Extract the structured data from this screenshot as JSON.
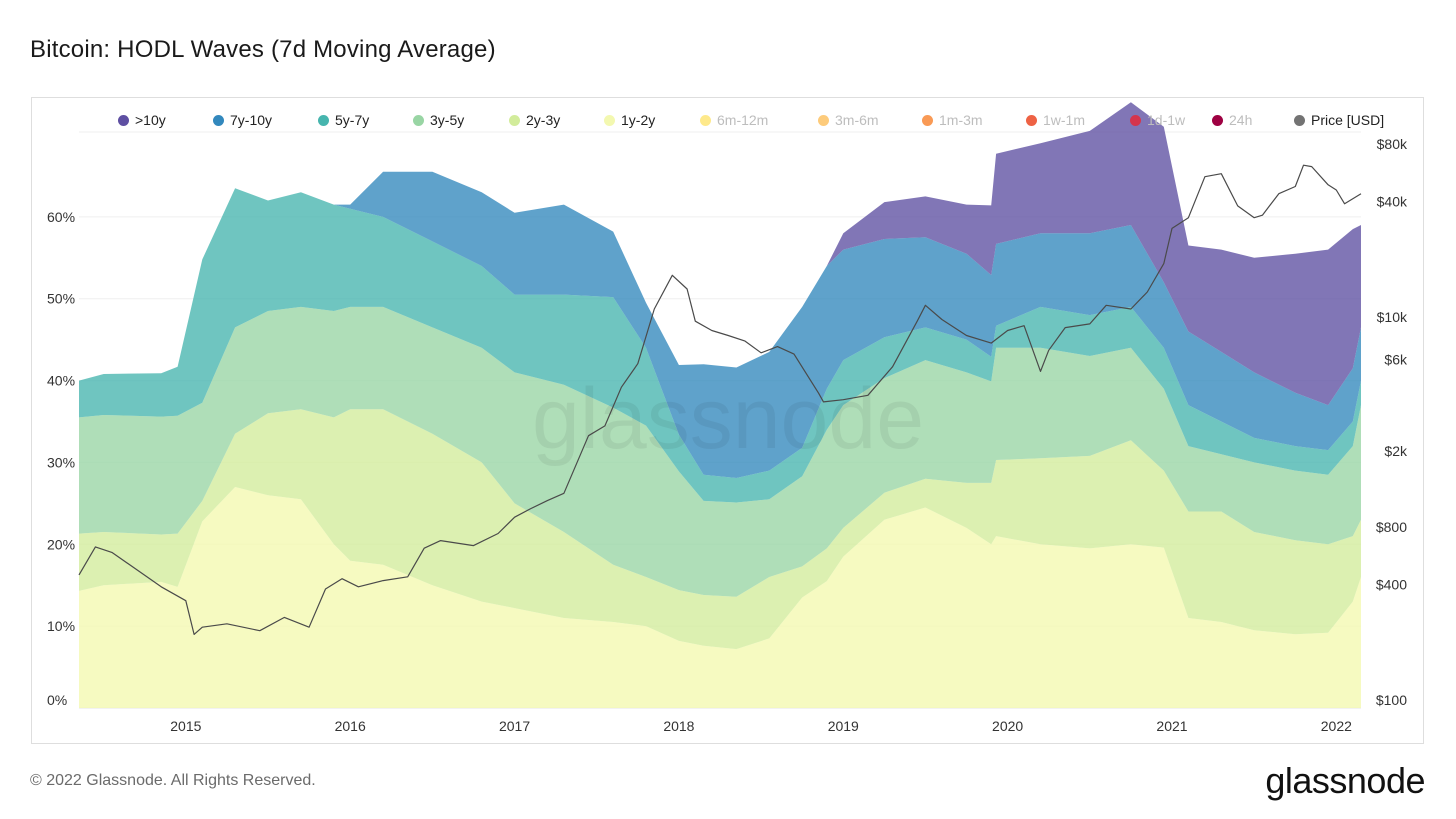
{
  "title": "Bitcoin: HODL Waves (7d Moving Average)",
  "footer": "© 2022 Glassnode. All Rights Reserved.",
  "brand": "glassnode",
  "watermark": "glassnode",
  "legend": [
    {
      "label": ">10y",
      "color": "#5e4fa2",
      "active": true
    },
    {
      "label": "7y-10y",
      "color": "#3288bd",
      "active": true
    },
    {
      "label": "5y-7y",
      "color": "#46b5ae",
      "active": true
    },
    {
      "label": "3y-5y",
      "color": "#99d5a4",
      "active": true
    },
    {
      "label": "2y-3y",
      "color": "#d2ec9b",
      "active": true
    },
    {
      "label": "1y-2y",
      "color": "#f3f8b0",
      "active": true
    },
    {
      "label": "6m-12m",
      "color": "#fee98b",
      "active": false
    },
    {
      "label": "3m-6m",
      "color": "#fdcb7b",
      "active": false
    },
    {
      "label": "1m-3m",
      "color": "#f99a55",
      "active": false
    },
    {
      "label": "1w-1m",
      "color": "#ee6244",
      "active": false
    },
    {
      "label": "1d-1w",
      "color": "#d5354c",
      "active": false
    },
    {
      "label": "24h",
      "color": "#9e0142",
      "active": false
    },
    {
      "label": "Price [USD]",
      "color": "#737373",
      "active": true
    }
  ],
  "chart_data": {
    "type": "area",
    "stacked": true,
    "y_left_ticks": [
      "0%",
      "10%",
      "20%",
      "30%",
      "40%",
      "50%",
      "60%"
    ],
    "y_left_range": [
      0,
      60
    ],
    "y_right_scale": "log",
    "y_right_ticks": [
      "$100",
      "$400",
      "$800",
      "$2k",
      "$6k",
      "$10k",
      "$40k",
      "$80k"
    ],
    "y_right_tick_values": [
      100,
      400,
      800,
      2000,
      6000,
      10000,
      40000,
      80000
    ],
    "x_ticks": [
      "2015",
      "2016",
      "2017",
      "2018",
      "2019",
      "2020",
      "2021",
      "2022"
    ],
    "x": [
      2014.35,
      2014.5,
      2014.85,
      2014.95,
      2015.1,
      2015.3,
      2015.5,
      2015.7,
      2015.9,
      2016.0,
      2016.2,
      2016.5,
      2016.8,
      2017.0,
      2017.3,
      2017.6,
      2017.8,
      2018.0,
      2018.15,
      2018.35,
      2018.55,
      2018.75,
      2018.9,
      2019.0,
      2019.25,
      2019.5,
      2019.75,
      2019.9,
      2019.93,
      2020.2,
      2020.5,
      2020.75,
      2020.95,
      2021.1,
      2021.3,
      2021.5,
      2021.75,
      2021.95,
      2022.1,
      2022.15
    ],
    "series": [
      {
        "name": "1y-2y",
        "values": [
          14.3,
          15.0,
          15.4,
          14.8,
          22.8,
          27.0,
          26.0,
          25.5,
          20.0,
          18.0,
          17.5,
          15.0,
          13.0,
          12.2,
          11.0,
          10.5,
          10.0,
          8.2,
          7.6,
          7.2,
          8.5,
          13.5,
          15.5,
          18.5,
          23.0,
          24.5,
          22.0,
          20.0,
          21.0,
          20.0,
          19.5,
          20.0,
          19.6,
          11.0,
          10.5,
          9.5,
          9.0,
          9.2,
          13.0,
          16.0
        ]
      },
      {
        "name": "2y-3y",
        "values": [
          7.0,
          6.5,
          5.8,
          6.5,
          2.5,
          6.5,
          10.0,
          11.0,
          15.5,
          18.5,
          19.0,
          18.5,
          17.0,
          12.8,
          10.5,
          7.0,
          6.0,
          6.2,
          6.2,
          6.4,
          7.5,
          3.8,
          4.0,
          3.5,
          3.3,
          3.5,
          5.5,
          7.5,
          9.3,
          10.5,
          11.3,
          12.7,
          9.4,
          13.0,
          13.5,
          12.0,
          11.5,
          10.8,
          8.0,
          7.0
        ]
      },
      {
        "name": "3y-5y",
        "values": [
          14.2,
          14.3,
          14.4,
          14.4,
          12.0,
          13.0,
          12.5,
          12.5,
          13.0,
          12.5,
          12.5,
          13.0,
          14.0,
          16.0,
          18.0,
          19.2,
          18.5,
          14.5,
          11.5,
          11.5,
          9.5,
          11.0,
          14.5,
          15.0,
          14.0,
          14.5,
          13.5,
          12.4,
          13.7,
          13.5,
          12.2,
          11.3,
          10.0,
          8.0,
          7.0,
          8.5,
          8.5,
          8.5,
          11.0,
          14.0
        ]
      },
      {
        "name": "5y-7y",
        "values": [
          4.5,
          5.0,
          5.3,
          6.0,
          17.5,
          17.0,
          13.5,
          14.0,
          13.0,
          12.0,
          11.0,
          10.5,
          10.0,
          9.5,
          11.0,
          13.5,
          9.5,
          4.5,
          3.2,
          3.0,
          3.5,
          3.5,
          5.0,
          5.5,
          5.0,
          4.0,
          4.0,
          3.0,
          2.7,
          5.0,
          5.0,
          5.0,
          5.0,
          5.0,
          4.0,
          3.0,
          3.0,
          3.0,
          3.0,
          3.0
        ]
      },
      {
        "name": "7y-10y",
        "values": [
          0,
          0,
          0,
          0,
          0,
          0,
          0,
          0,
          0,
          0.5,
          5.5,
          8.5,
          9.0,
          10.0,
          11.0,
          8.0,
          5.5,
          8.5,
          13.5,
          13.5,
          14.5,
          17.2,
          15.0,
          13.5,
          12.0,
          11.0,
          10.5,
          10.0,
          10.0,
          9.0,
          10.0,
          10.0,
          8.0,
          9.0,
          8.5,
          8.0,
          6.5,
          5.5,
          6.5,
          6.5
        ]
      },
      {
        "name": ">10y",
        "values": [
          0,
          0,
          0,
          0,
          0,
          0,
          0,
          0,
          0,
          0,
          0,
          0,
          0,
          0,
          0,
          0,
          0,
          0,
          0,
          0,
          0,
          0,
          0,
          2.0,
          4.5,
          5.0,
          6.0,
          8.5,
          11.0,
          11.0,
          12.5,
          15.0,
          19.0,
          10.5,
          12.5,
          14.0,
          17.0,
          19.0,
          17.0,
          12.5
        ]
      }
    ],
    "price": {
      "name": "Price [USD]",
      "x": [
        2014.35,
        2014.45,
        2014.55,
        2014.7,
        2014.85,
        2015.0,
        2015.05,
        2015.1,
        2015.25,
        2015.45,
        2015.6,
        2015.75,
        2015.85,
        2015.95,
        2016.05,
        2016.2,
        2016.35,
        2016.45,
        2016.55,
        2016.75,
        2016.9,
        2017.0,
        2017.1,
        2017.2,
        2017.3,
        2017.45,
        2017.55,
        2017.65,
        2017.75,
        2017.85,
        2017.96,
        2018.05,
        2018.1,
        2018.2,
        2018.3,
        2018.4,
        2018.5,
        2018.6,
        2018.7,
        2018.85,
        2018.88,
        2019.0,
        2019.15,
        2019.3,
        2019.45,
        2019.5,
        2019.6,
        2019.75,
        2019.9,
        2020.0,
        2020.1,
        2020.2,
        2020.25,
        2020.35,
        2020.5,
        2020.6,
        2020.75,
        2020.85,
        2020.95,
        2021.0,
        2021.1,
        2021.2,
        2021.3,
        2021.4,
        2021.5,
        2021.55,
        2021.65,
        2021.75,
        2021.8,
        2021.85,
        2021.95,
        2022.0,
        2022.05,
        2022.15
      ],
      "values": [
        450,
        630,
        590,
        480,
        390,
        330,
        220,
        240,
        250,
        230,
        270,
        240,
        380,
        430,
        390,
        420,
        440,
        620,
        680,
        640,
        740,
        900,
        1000,
        1100,
        1200,
        2400,
        2700,
        4300,
        5700,
        11000,
        16500,
        14000,
        9500,
        8500,
        8000,
        7500,
        6500,
        7000,
        6400,
        4000,
        3600,
        3700,
        3900,
        5500,
        9500,
        11500,
        9700,
        8000,
        7300,
        8500,
        9000,
        5200,
        6700,
        8800,
        9200,
        11500,
        11000,
        13500,
        19000,
        29000,
        33000,
        54000,
        56000,
        38000,
        33000,
        34000,
        44000,
        48000,
        62000,
        61000,
        49000,
        46000,
        39000,
        44000
      ]
    }
  }
}
